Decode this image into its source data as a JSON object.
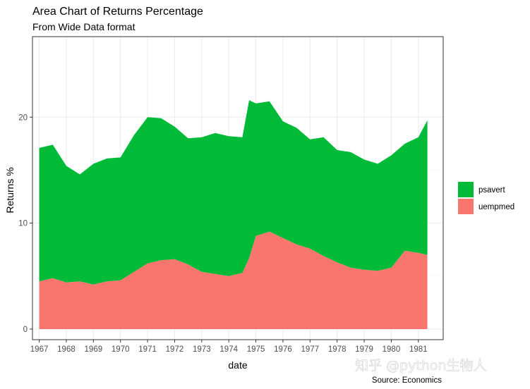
{
  "chart_data": {
    "type": "area",
    "title": "Area Chart of Returns Percentage",
    "subtitle": "From Wide Data format",
    "caption": "Source: Economics",
    "xlabel": "date",
    "ylabel": "Returns %",
    "xlim": [
      "1966-10-01",
      "1981-12-01"
    ],
    "ylim": [
      -1,
      27.6
    ],
    "x_ticks": [
      "1967",
      "1968",
      "1969",
      "1970",
      "1971",
      "1972",
      "1973",
      "1974",
      "1975",
      "1976",
      "1977",
      "1978",
      "1979",
      "1980",
      "1981"
    ],
    "y_ticks": [
      0,
      10,
      20
    ],
    "grid": true,
    "stacked": true,
    "legend_position": "right",
    "x": [
      "1967-01",
      "1967-07",
      "1968-01",
      "1968-07",
      "1969-01",
      "1969-07",
      "1970-01",
      "1970-07",
      "1971-01",
      "1971-07",
      "1972-01",
      "1972-07",
      "1973-01",
      "1973-07",
      "1974-01",
      "1974-07",
      "1974-10",
      "1975-01",
      "1975-07",
      "1976-01",
      "1976-07",
      "1977-01",
      "1977-07",
      "1978-01",
      "1978-07",
      "1979-01",
      "1979-07",
      "1980-01",
      "1980-07",
      "1981-01",
      "1981-05"
    ],
    "series": [
      {
        "name": "uempmed",
        "color": "#F8766D",
        "values": [
          4.5,
          4.8,
          4.4,
          4.5,
          4.2,
          4.5,
          4.6,
          5.4,
          6.2,
          6.5,
          6.6,
          6.1,
          5.4,
          5.2,
          5.0,
          5.3,
          6.7,
          8.8,
          9.2,
          8.6,
          8.0,
          7.6,
          6.9,
          6.3,
          5.8,
          5.6,
          5.5,
          5.8,
          7.4,
          7.2,
          7.0
        ]
      },
      {
        "name": "psavert",
        "color": "#00BA38",
        "values": [
          12.6,
          12.6,
          11.0,
          10.1,
          11.4,
          11.6,
          11.6,
          12.9,
          13.8,
          13.4,
          12.5,
          11.9,
          12.7,
          13.3,
          13.2,
          12.8,
          14.9,
          12.5,
          12.3,
          11.0,
          11.0,
          10.3,
          11.2,
          10.6,
          10.9,
          10.4,
          10.1,
          10.6,
          10.1,
          10.9,
          12.7
        ]
      }
    ]
  },
  "watermark": "知乎 @python生物人"
}
